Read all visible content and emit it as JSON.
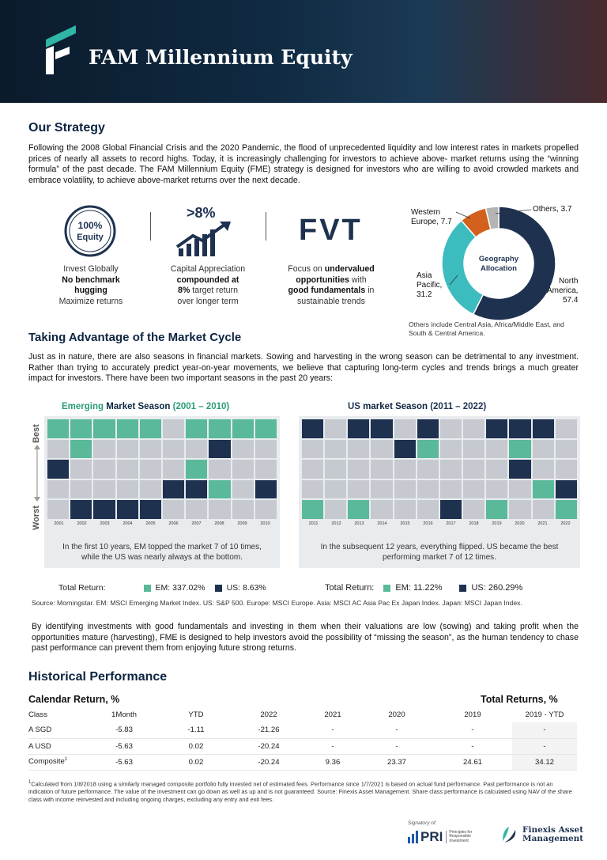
{
  "header": {
    "brand": "FAM Millennium Equity"
  },
  "strategy": {
    "title": "Our Strategy",
    "body": "Following the 2008 Global Financial Crisis and the 2020 Pandemic, the flood of unprecedented liquidity and low interest rates in markets propelled prices of nearly all assets to record highs. Today, it is increasingly challenging for investors to achieve above- market returns using the “winning formula” of the past decade. The FAM Millennium Equity (FME) strategy is designed for investors who are willing to avoid crowded markets and embrace volatility, to achieve above-market returns over the next decade.",
    "badge_line1": "100%",
    "badge_line2": "Equity",
    "growth_badge": ">8%",
    "fvt_badge": "FVT",
    "pillar1": {
      "l1": "Invest Globally",
      "l2": "No benchmark",
      "l3": "hugging",
      "l4": "Maximize returns"
    },
    "pillar2": {
      "l1": "Capital Appreciation",
      "l2": "compounded at",
      "l3a": "8%",
      "l3b": " target return",
      "l4": "over longer term"
    },
    "pillar3": {
      "l1a": "Focus on ",
      "l1b": "undervalued",
      "l2a": "opportunities",
      "l2b": " with",
      "l3a": "good fundamentals",
      "l3b": " in",
      "l4": "sustainable trends"
    }
  },
  "geography": {
    "center_l1": "Geography",
    "center_l2": "Allocation",
    "labels": {
      "western_europe": "Western\nEurope, 7.7",
      "others": "Others, 3.7",
      "asia": "Asia\nPacific,\n31.2",
      "north_america": "North\nAmerica,\n57.4"
    },
    "note": "Others include Central Asia, Africa/Middle East, and South & Central America.",
    "colors": {
      "north_america": "#1e3250",
      "asia": "#3dbcbf",
      "western_europe": "#d3601c",
      "others": "#b4b4b4"
    }
  },
  "chart_data": {
    "type": "pie",
    "categories": [
      "North America",
      "Asia Pacific",
      "Western Europe",
      "Others"
    ],
    "values": [
      57.4,
      31.2,
      7.7,
      3.7
    ]
  },
  "cycle": {
    "title": "Taking Advantage of the Market Cycle",
    "body": "Just as in nature, there are also seasons in financial markets. Sowing and harvesting in the wrong season can be detrimental to any investment. Rather than trying to accurately predict year-on-year movements, we believe that capturing long-term cycles and trends brings a much greater impact for investors. There have been two important seasons in the past 20 years:",
    "best": "Best",
    "worst": "Worst",
    "em_panel": {
      "title_a": "Emerging",
      "title_b": " Market Season ",
      "title_c": "(2001 – 2010)",
      "years": [
        "2001",
        "2002",
        "2003",
        "2004",
        "2005",
        "2006",
        "2007",
        "2008",
        "2009",
        "2010"
      ],
      "caption": "In the first 10 years, EM topped the market 7 of 10 times,\nwhile the US was nearly always at the bottom.",
      "tr_label": "Total Return:",
      "tr_em": "EM: 337.02%",
      "tr_us": "US: 8.63%"
    },
    "us_panel": {
      "title_a": "US",
      "title_b": " market Season ",
      "title_c": "(2011 – 2022)",
      "years": [
        "2011",
        "2012",
        "2013",
        "2014",
        "2015",
        "2016",
        "2017",
        "2018",
        "2019",
        "2020",
        "2021",
        "2022"
      ],
      "caption": "In the subsequent 12 years, everything flipped. US became the best\nperforming market 7 of 12 times.",
      "tr_label": "Total Return:",
      "tr_em": "EM: 11.22%",
      "tr_us": "US: 260.29%"
    },
    "source": "Source: Morningstar. EM: MSCI Emerging Market Index. US: S&P 500. Europe: MSCI Europe. Asia: MSCI AC Asia Pac Ex Japan Index. Japan: MSCI Japan Index.",
    "closing": "By identifying investments with good fundamentals and investing in them when their valuations are low (sowing) and taking profit when the opportunities mature (harvesting), FME is designed to help investors avoid the possibility of “missing the season”, as the human tendency to chase past performance can prevent them from enjoying future strong returns."
  },
  "historical": {
    "title": "Historical Performance",
    "calendar_title": "Calendar Return, %",
    "total_title": "Total Returns, %",
    "headers": [
      "Class",
      "1Month",
      "YTD",
      "2022",
      "2021",
      "2020",
      "2019",
      "2019 - YTD"
    ],
    "rows": [
      {
        "cls": "A SGD",
        "sup": "",
        "vals": [
          "-5.83",
          "-1.11",
          "-21.26",
          "-",
          "-",
          "-",
          "-"
        ]
      },
      {
        "cls": "A USD",
        "sup": "",
        "vals": [
          "-5.63",
          "0.02",
          "-20.24",
          "-",
          "-",
          "-",
          "-"
        ]
      },
      {
        "cls": "Composite",
        "sup": "1",
        "vals": [
          "-5.63",
          "0.02",
          "-20.24",
          "9.36",
          "23.37",
          "24.61",
          "34.12"
        ]
      }
    ],
    "footnote_sup": "1",
    "footnote": "Calculated from 1/8/2018 using a similarly managed composite portfolio fully invested net of estimated fees. Performance since 1/7/2021 is based on actual fund performance. Past performance is not an indication of future performance. The value of the investment can go down as well as up and is not guaranteed. Source: Finexis Asset Management. Share class performance is calculated using NAV of the share class with income reinvested and including ongoing charges, excluding any entry and exit fees."
  },
  "footer": {
    "signatory": "Signatory of:",
    "pri": "PRI",
    "pri_sub1": "Principles for",
    "pri_sub2": "Responsible",
    "pri_sub3": "Investment",
    "finexis1": "Finexis Asset",
    "finexis2": "Management"
  }
}
